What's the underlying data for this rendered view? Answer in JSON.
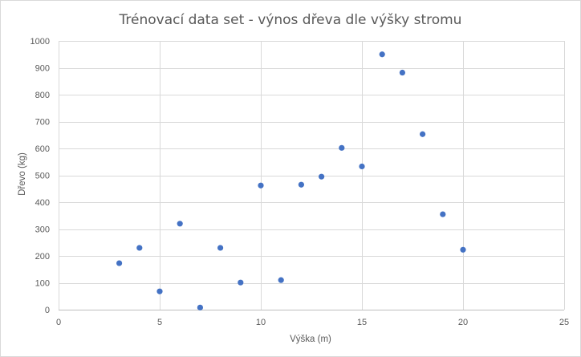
{
  "chart_data": {
    "type": "scatter",
    "title": "Trénovací data set - výnos dřeva dle výšky stromu",
    "xlabel": "Výška (m)",
    "ylabel": "Dřevo  (kg)",
    "xlim": [
      0,
      25
    ],
    "ylim": [
      0,
      1000
    ],
    "x_ticks": [
      0,
      5,
      10,
      15,
      20,
      25
    ],
    "y_ticks": [
      0,
      100,
      200,
      300,
      400,
      500,
      600,
      700,
      800,
      900,
      1000
    ],
    "grid": true,
    "legend": "none",
    "marker_color": "#4472c4",
    "points": [
      {
        "x": 3,
        "y": 173
      },
      {
        "x": 4,
        "y": 230
      },
      {
        "x": 5,
        "y": 68
      },
      {
        "x": 6,
        "y": 320
      },
      {
        "x": 7,
        "y": 8
      },
      {
        "x": 8,
        "y": 230
      },
      {
        "x": 9,
        "y": 101
      },
      {
        "x": 10,
        "y": 462
      },
      {
        "x": 11,
        "y": 110
      },
      {
        "x": 12,
        "y": 465
      },
      {
        "x": 13,
        "y": 495
      },
      {
        "x": 14,
        "y": 602
      },
      {
        "x": 15,
        "y": 533
      },
      {
        "x": 16,
        "y": 950
      },
      {
        "x": 17,
        "y": 882
      },
      {
        "x": 18,
        "y": 653
      },
      {
        "x": 19,
        "y": 355
      },
      {
        "x": 20,
        "y": 223
      }
    ]
  }
}
